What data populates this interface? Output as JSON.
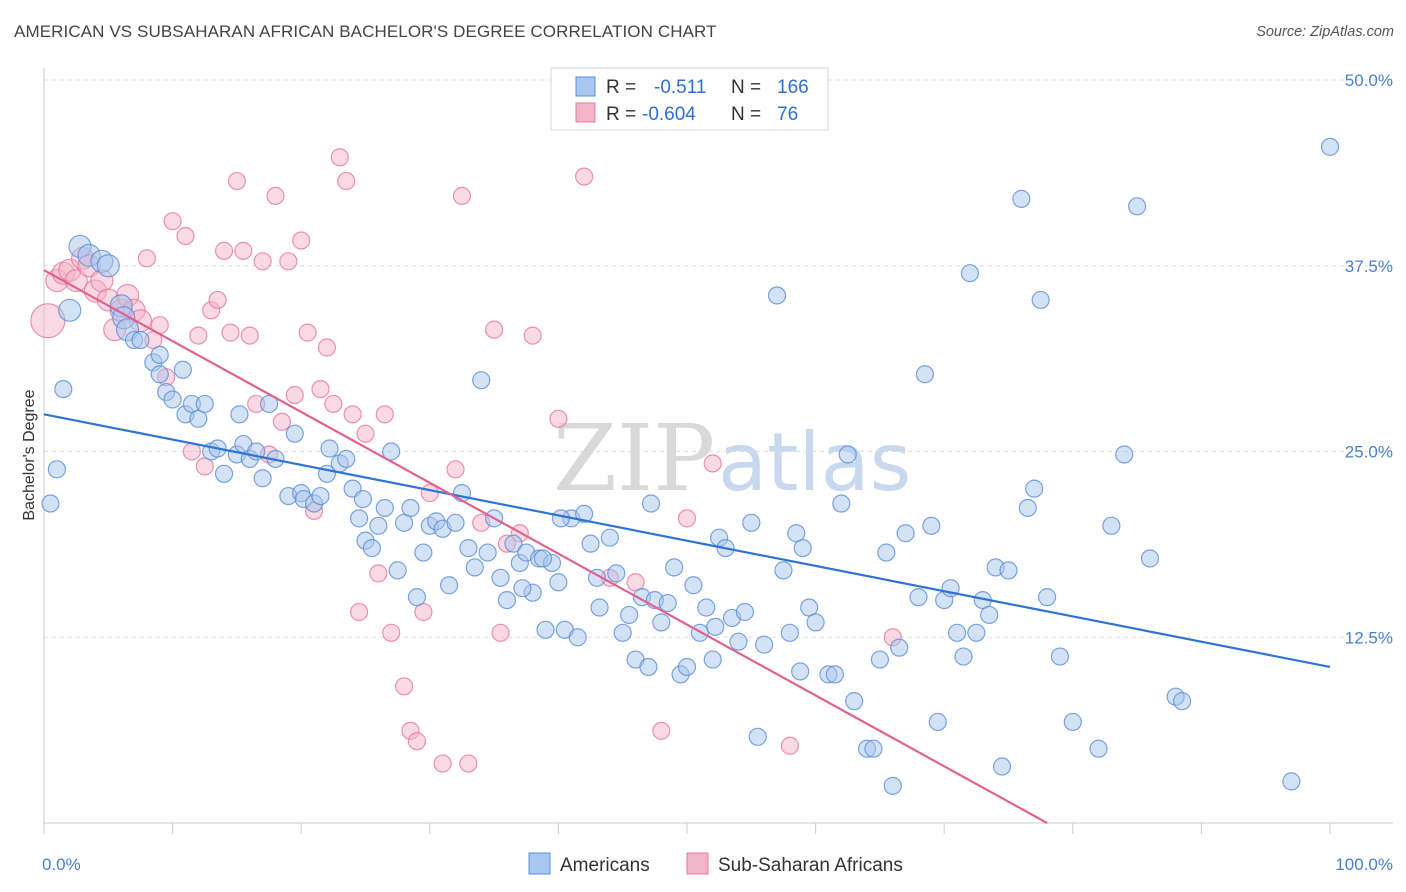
{
  "title": "AMERICAN VS SUBSAHARAN AFRICAN BACHELOR'S DEGREE CORRELATION CHART",
  "source": "Source: ZipAtlas.com",
  "watermark": {
    "zip": "ZIP",
    "atlas": "atlas"
  },
  "colors": {
    "americans": "#5b8fd8",
    "americans_fill": "#a9c6ee",
    "subsaharan": "#e8789e",
    "subsaharan_fill": "#f3b3c8",
    "tick": "#4a7fd0"
  },
  "legend": {
    "row1": {
      "r_label": "R =",
      "r_value": "-0.511",
      "n_label": "N =",
      "n_value": "166"
    },
    "row2": {
      "r_label": "R =",
      "r_value": "-0.604",
      "n_label": "N =",
      "n_value": "76"
    }
  },
  "bottom_legend": {
    "americans": "Americans",
    "subsaharan": "Sub-Saharan Africans"
  },
  "chart_data": {
    "type": "scatter",
    "xlabel": "",
    "ylabel": "Bachelor's Degree",
    "xlim": [
      0,
      100
    ],
    "ylim": [
      0,
      50
    ],
    "x_tick_labels": [
      "0.0%",
      "100.0%"
    ],
    "y_ticks": [
      12.5,
      25.0,
      37.5,
      50.0
    ],
    "y_tick_labels": [
      "12.5%",
      "25.0%",
      "37.5%",
      "50.0%"
    ],
    "grid": "horizontal dashed",
    "legend_position": "top-center",
    "series": [
      {
        "name": "Americans",
        "r": -0.511,
        "n": 166,
        "trend": {
          "x1": 0,
          "y1": 27.5,
          "x2": 100,
          "y2": 10.5
        },
        "points": [
          [
            0.5,
            21.5
          ],
          [
            1,
            23.8
          ],
          [
            1.5,
            29.2
          ],
          [
            2,
            34.5
          ],
          [
            2.8,
            38.8
          ],
          [
            3.5,
            38.2
          ],
          [
            4.5,
            37.8
          ],
          [
            5,
            37.5
          ],
          [
            6,
            34.8
          ],
          [
            6.2,
            34
          ],
          [
            6.5,
            33.2
          ],
          [
            7,
            32.5
          ],
          [
            7.5,
            32.5
          ],
          [
            8.5,
            31
          ],
          [
            9,
            31.5
          ],
          [
            9,
            30.2
          ],
          [
            9.5,
            29
          ],
          [
            10,
            28.5
          ],
          [
            11,
            27.5
          ],
          [
            10.8,
            30.5
          ],
          [
            11.5,
            28.2
          ],
          [
            12,
            27.2
          ],
          [
            12.5,
            28.2
          ],
          [
            13,
            25
          ],
          [
            13.5,
            25.2
          ],
          [
            14,
            23.5
          ],
          [
            15,
            24.8
          ],
          [
            15.2,
            27.5
          ],
          [
            15.5,
            25.5
          ],
          [
            16,
            24.5
          ],
          [
            16.5,
            25
          ],
          [
            17,
            23.2
          ],
          [
            18,
            24.5
          ],
          [
            17.5,
            28.2
          ],
          [
            19,
            22
          ],
          [
            19.5,
            26.2
          ],
          [
            20,
            22.2
          ],
          [
            20.2,
            21.8
          ],
          [
            21,
            21.5
          ],
          [
            21.5,
            22
          ],
          [
            22,
            23.5
          ],
          [
            22.2,
            25.2
          ],
          [
            23,
            24.2
          ],
          [
            23.5,
            24.5
          ],
          [
            24,
            22.5
          ],
          [
            24.5,
            20.5
          ],
          [
            24.8,
            21.8
          ],
          [
            25,
            19
          ],
          [
            25.5,
            18.5
          ],
          [
            26,
            20
          ],
          [
            26.5,
            21.2
          ],
          [
            27,
            25
          ],
          [
            27.5,
            17
          ],
          [
            28,
            20.2
          ],
          [
            28.5,
            21.2
          ],
          [
            29,
            15.2
          ],
          [
            29.5,
            18.2
          ],
          [
            30,
            20
          ],
          [
            30.5,
            20.3
          ],
          [
            31,
            19.8
          ],
          [
            31.5,
            16
          ],
          [
            32,
            20.2
          ],
          [
            32.5,
            22.2
          ],
          [
            33,
            18.5
          ],
          [
            33.5,
            17.2
          ],
          [
            34,
            29.8
          ],
          [
            34.5,
            18.2
          ],
          [
            35,
            20.5
          ],
          [
            35.5,
            16.5
          ],
          [
            36,
            15
          ],
          [
            36.5,
            18.8
          ],
          [
            37,
            17.5
          ],
          [
            37.5,
            18.2
          ],
          [
            38,
            15.5
          ],
          [
            38.5,
            17.8
          ],
          [
            39,
            13
          ],
          [
            39.5,
            17.5
          ],
          [
            40,
            16.2
          ],
          [
            40.5,
            13
          ],
          [
            41,
            20.5
          ],
          [
            41.5,
            12.5
          ],
          [
            42,
            20.8
          ],
          [
            42.5,
            18.8
          ],
          [
            43,
            16.5
          ],
          [
            43.2,
            14.5
          ],
          [
            44,
            19.2
          ],
          [
            44.5,
            16.8
          ],
          [
            45,
            12.8
          ],
          [
            45.5,
            14
          ],
          [
            46,
            11
          ],
          [
            46.5,
            15.2
          ],
          [
            47,
            10.5
          ],
          [
            47.5,
            15
          ],
          [
            48,
            13.5
          ],
          [
            48.5,
            14.8
          ],
          [
            49,
            17.2
          ],
          [
            49.5,
            10
          ],
          [
            50,
            10.5
          ],
          [
            50.5,
            16
          ],
          [
            51,
            12.8
          ],
          [
            51.5,
            14.5
          ],
          [
            52,
            11
          ],
          [
            52.5,
            19.2
          ],
          [
            53,
            18.5
          ],
          [
            53.5,
            13.8
          ],
          [
            54,
            12.2
          ],
          [
            54.5,
            14.2
          ],
          [
            55,
            20.2
          ],
          [
            55.5,
            5.8
          ],
          [
            56,
            12
          ],
          [
            57,
            35.5
          ],
          [
            57.5,
            17
          ],
          [
            58,
            12.8
          ],
          [
            58.5,
            19.5
          ],
          [
            59,
            18.5
          ],
          [
            59.5,
            14.5
          ],
          [
            60,
            13.5
          ],
          [
            61,
            10
          ],
          [
            61.5,
            10
          ],
          [
            62,
            21.5
          ],
          [
            62.5,
            24.8
          ],
          [
            63,
            8.2
          ],
          [
            64,
            5
          ],
          [
            64.5,
            5
          ],
          [
            65,
            11
          ],
          [
            65.5,
            18.2
          ],
          [
            66,
            2.5
          ],
          [
            67,
            19.5
          ],
          [
            68,
            15.2
          ],
          [
            68.5,
            30.2
          ],
          [
            69,
            20
          ],
          [
            69.5,
            6.8
          ],
          [
            70,
            15
          ],
          [
            70.5,
            15.8
          ],
          [
            71,
            12.8
          ],
          [
            71.5,
            11.2
          ],
          [
            72,
            37
          ],
          [
            72.5,
            12.8
          ],
          [
            73,
            15
          ],
          [
            74,
            17.2
          ],
          [
            74.5,
            3.8
          ],
          [
            75,
            17
          ],
          [
            76,
            42
          ],
          [
            76.5,
            21.2
          ],
          [
            77,
            22.5
          ],
          [
            77.5,
            35.2
          ],
          [
            78,
            15.2
          ],
          [
            79,
            11.2
          ],
          [
            80,
            6.8
          ],
          [
            82,
            5
          ],
          [
            83,
            20
          ],
          [
            84,
            24.8
          ],
          [
            85,
            41.5
          ],
          [
            86,
            17.8
          ],
          [
            88,
            8.5
          ],
          [
            88.5,
            8.2
          ],
          [
            97,
            2.8
          ],
          [
            100,
            45.5
          ],
          [
            38.8,
            17.8
          ],
          [
            37.2,
            15.8
          ],
          [
            40.2,
            20.5
          ],
          [
            47.2,
            21.5
          ],
          [
            52.2,
            13.2
          ],
          [
            66.5,
            11.8
          ],
          [
            73.5,
            14
          ],
          [
            58.8,
            10.2
          ]
        ]
      },
      {
        "name": "Sub-Saharan Africans",
        "r": -0.604,
        "n": 76,
        "trend": {
          "x1": 0,
          "y1": 37.2,
          "x2": 78,
          "y2": 0
        },
        "points": [
          [
            0.3,
            33.8
          ],
          [
            1,
            36.5
          ],
          [
            1.5,
            37
          ],
          [
            2,
            37.2
          ],
          [
            2.5,
            36.5
          ],
          [
            3,
            38
          ],
          [
            3.5,
            37.5
          ],
          [
            4,
            35.8
          ],
          [
            4.5,
            36.5
          ],
          [
            5,
            35.2
          ],
          [
            5.5,
            33.2
          ],
          [
            6,
            34.5
          ],
          [
            6.5,
            35.5
          ],
          [
            7,
            34.5
          ],
          [
            7.5,
            33.8
          ],
          [
            8,
            38
          ],
          [
            8.5,
            32.5
          ],
          [
            9,
            33.5
          ],
          [
            9.5,
            30
          ],
          [
            10,
            40.5
          ],
          [
            11,
            39.5
          ],
          [
            11.5,
            25
          ],
          [
            12,
            32.8
          ],
          [
            12.5,
            24
          ],
          [
            13,
            34.5
          ],
          [
            13.5,
            35.2
          ],
          [
            14,
            38.5
          ],
          [
            14.5,
            33
          ],
          [
            15,
            43.2
          ],
          [
            15.5,
            38.5
          ],
          [
            16,
            32.8
          ],
          [
            16.5,
            28.2
          ],
          [
            17,
            37.8
          ],
          [
            17.5,
            24.8
          ],
          [
            18,
            42.2
          ],
          [
            18.5,
            27
          ],
          [
            19,
            37.8
          ],
          [
            19.5,
            28.8
          ],
          [
            20,
            39.2
          ],
          [
            20.5,
            33
          ],
          [
            21,
            21
          ],
          [
            21.5,
            29.2
          ],
          [
            22,
            32
          ],
          [
            22.5,
            28.2
          ],
          [
            23,
            44.8
          ],
          [
            23.5,
            43.2
          ],
          [
            24,
            27.5
          ],
          [
            24.5,
            14.2
          ],
          [
            25,
            26.2
          ],
          [
            26,
            16.8
          ],
          [
            26.5,
            27.5
          ],
          [
            27,
            12.8
          ],
          [
            28,
            9.2
          ],
          [
            28.5,
            6.2
          ],
          [
            29,
            5.5
          ],
          [
            29.5,
            14.2
          ],
          [
            30,
            22.2
          ],
          [
            31,
            4
          ],
          [
            32,
            23.8
          ],
          [
            32.5,
            42.2
          ],
          [
            33,
            4
          ],
          [
            34,
            20.2
          ],
          [
            35,
            33.2
          ],
          [
            35.5,
            12.8
          ],
          [
            36,
            18.8
          ],
          [
            37,
            19.5
          ],
          [
            38,
            32.8
          ],
          [
            40,
            27.2
          ],
          [
            42,
            43.5
          ],
          [
            44,
            16.5
          ],
          [
            46,
            16.2
          ],
          [
            48,
            6.2
          ],
          [
            50,
            20.5
          ],
          [
            52,
            24.2
          ],
          [
            58,
            5.2
          ],
          [
            66,
            12.5
          ]
        ]
      }
    ]
  }
}
